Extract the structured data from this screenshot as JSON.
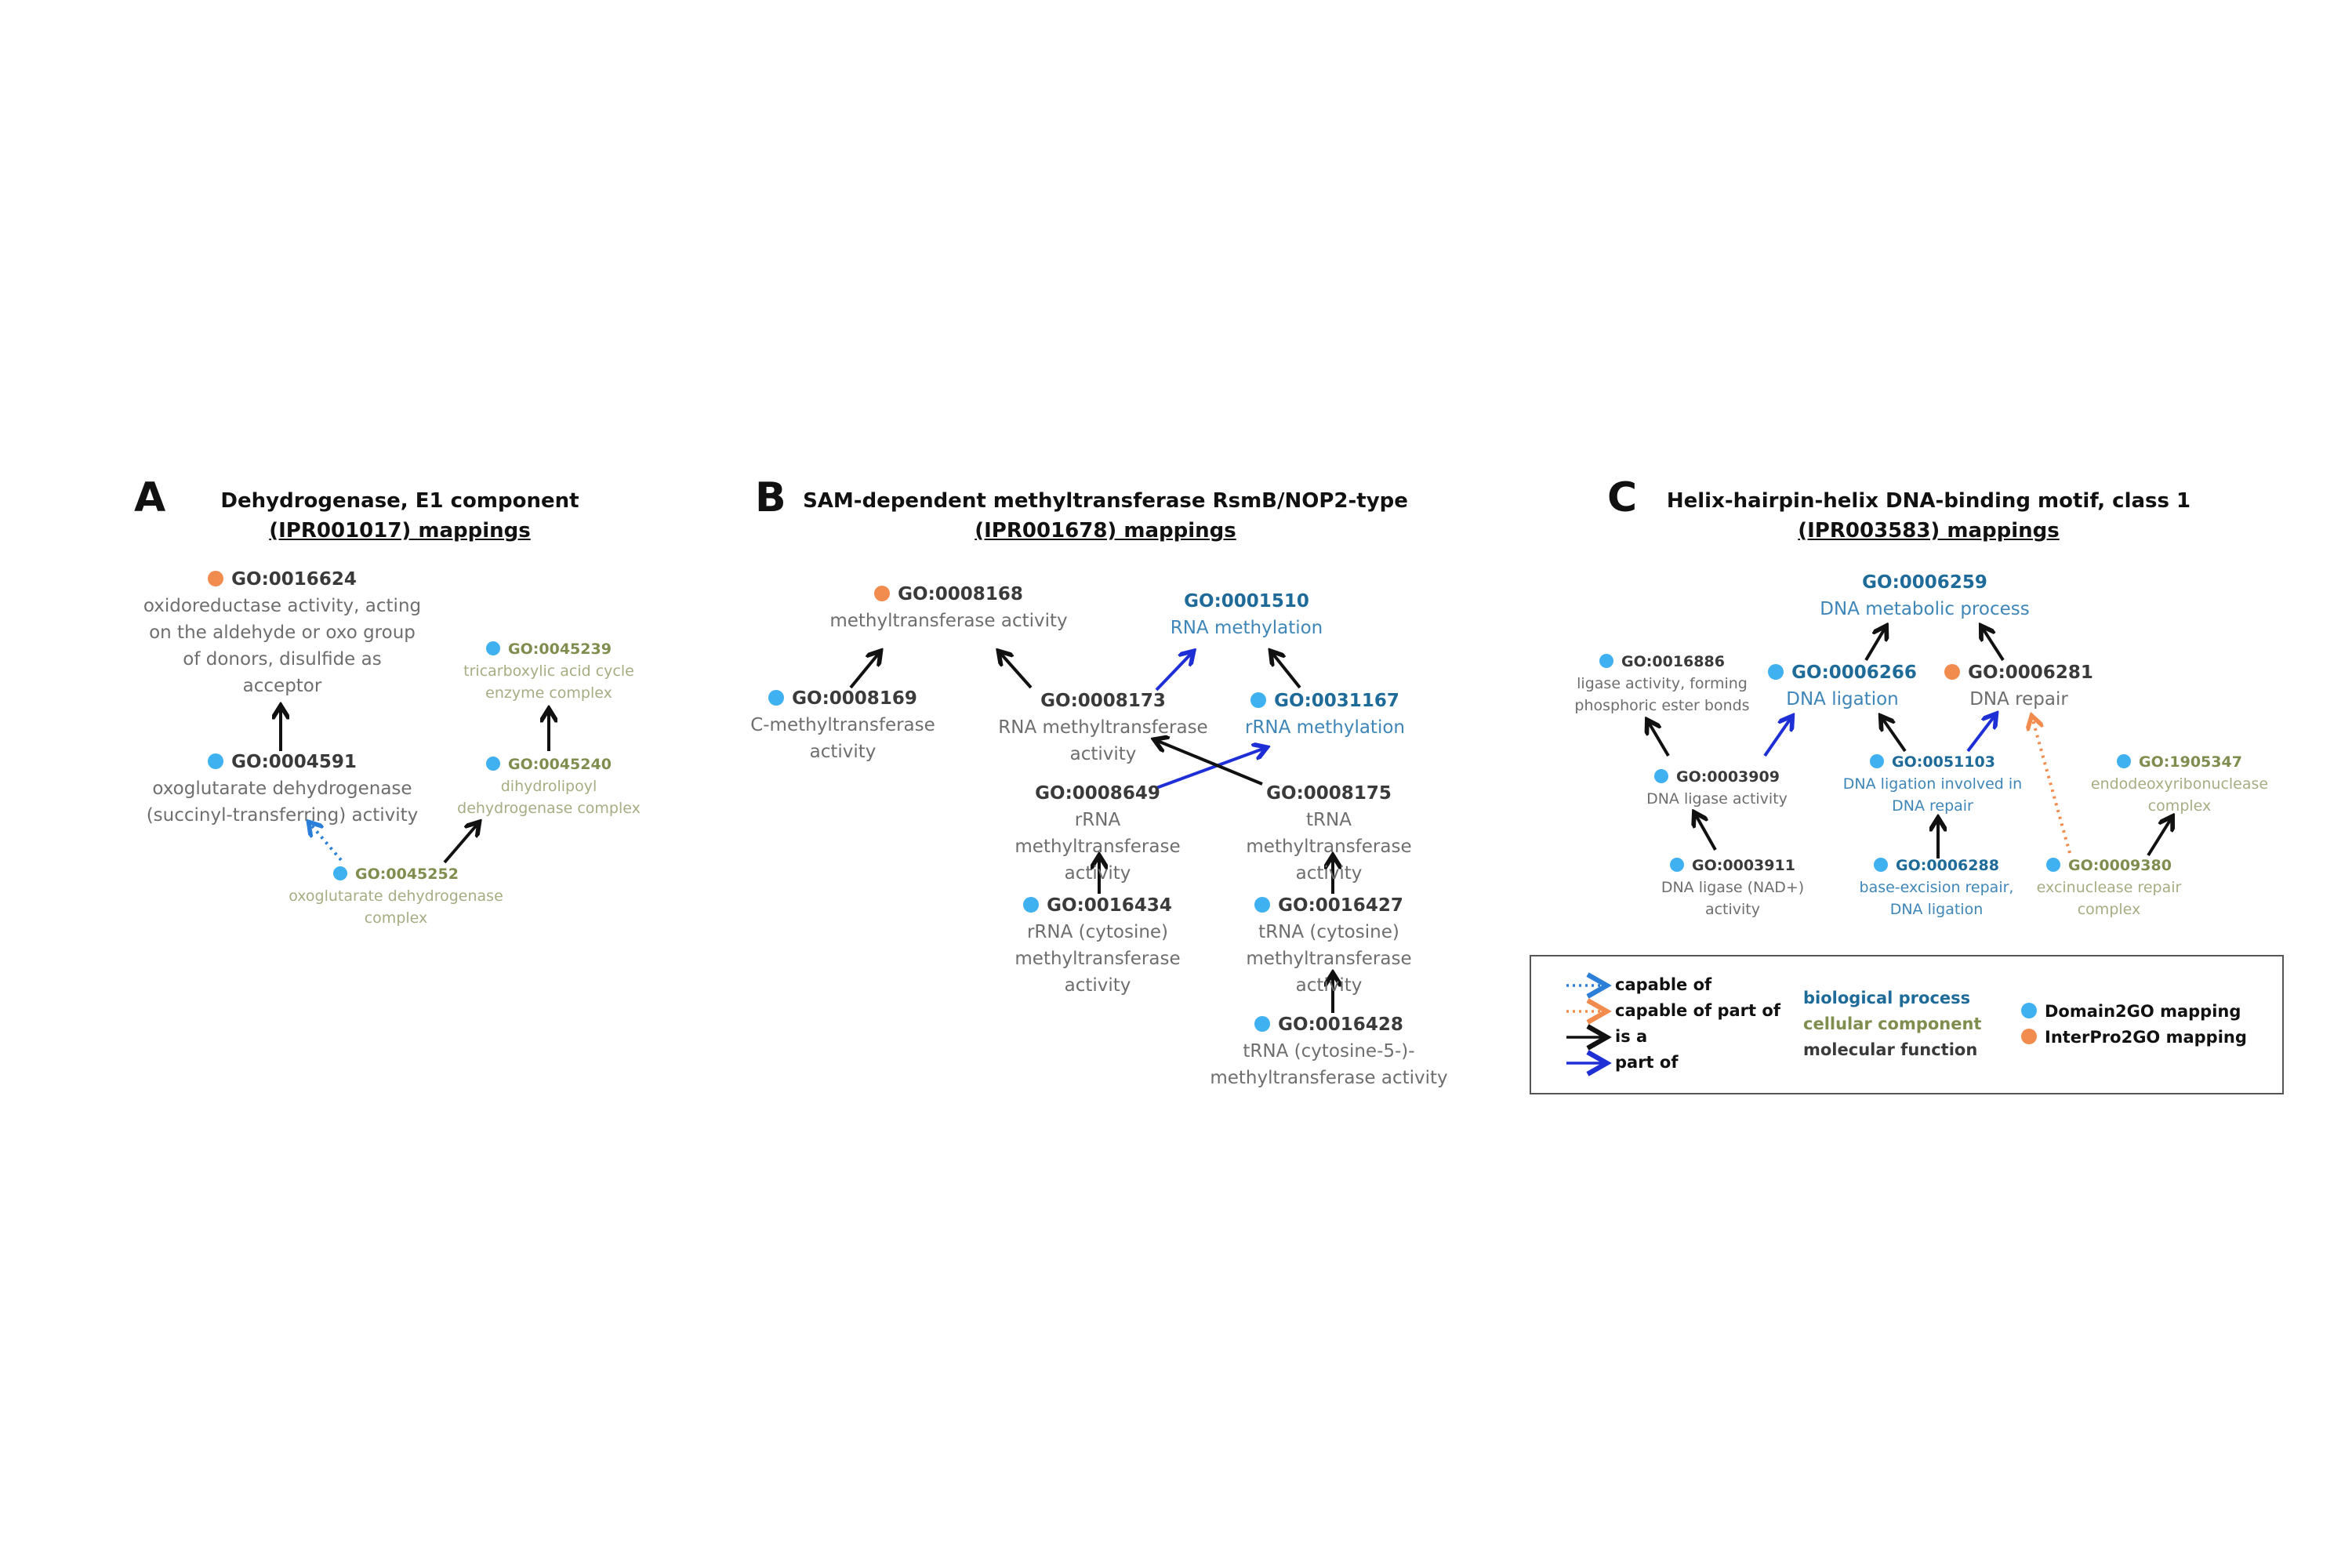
{
  "colors": {
    "domain2go": "#3fb0f0",
    "interpro2go": "#f28c4e",
    "biological_process": "#1e6b9a",
    "cellular_component": "#7f8d4e",
    "molecular_function": "#3a3a3a",
    "is_a": "#111111",
    "part_of": "#1f2fd6",
    "capable_of": "#2b7fd8",
    "capable_of_part_of": "#f28c4e"
  },
  "panels": {
    "A": {
      "letter": "A",
      "title": "Dehydrogenase, E1 component",
      "subtitle": "(IPR001017) mappings"
    },
    "B": {
      "letter": "B",
      "title": "SAM-dependent methyltransferase RsmB/NOP2-type",
      "subtitle": "(IPR001678) mappings"
    },
    "C": {
      "letter": "C",
      "title": "Helix-hairpin-helix DNA-binding motif, class 1",
      "subtitle": "(IPR003583) mappings"
    }
  },
  "nodes": {
    "a_0016624": {
      "id": "GO:0016624",
      "label": "oxidoreductase activity, acting on the aldehyde or oxo group of donors, disulfide as acceptor",
      "mapping": "interpro2go"
    },
    "a_0004591": {
      "id": "GO:0004591",
      "label": "oxoglutarate dehydrogenase (succinyl-transferring) activity",
      "mapping": "domain2go"
    },
    "a_0045239": {
      "id": "GO:0045239",
      "label": "tricarboxylic acid cycle enzyme complex",
      "mapping": "domain2go"
    },
    "a_0045240": {
      "id": "GO:0045240",
      "label": "dihydrolipoyl dehydrogenase complex",
      "mapping": "domain2go"
    },
    "a_0045252": {
      "id": "GO:0045252",
      "label": "oxoglutarate dehydrogenase complex",
      "mapping": "domain2go"
    },
    "b_0008168": {
      "id": "GO:0008168",
      "label": "methyltransferase activity",
      "mapping": "interpro2go"
    },
    "b_0001510": {
      "id": "GO:0001510",
      "label": "RNA methylation",
      "mapping": ""
    },
    "b_0008169": {
      "id": "GO:0008169",
      "label": "C-methyltransferase activity",
      "mapping": "domain2go"
    },
    "b_0008173": {
      "id": "GO:0008173",
      "label": "RNA methyltransferase activity",
      "mapping": ""
    },
    "b_0031167": {
      "id": "GO:0031167",
      "label": "rRNA methylation",
      "mapping": "domain2go"
    },
    "b_0008649": {
      "id": "GO:0008649",
      "label": "rRNA methyltransferase activity",
      "mapping": ""
    },
    "b_0008175": {
      "id": "GO:0008175",
      "label": "tRNA methyltransferase activity",
      "mapping": ""
    },
    "b_0016434": {
      "id": "GO:0016434",
      "label": "rRNA (cytosine) methyltransferase activity",
      "mapping": "domain2go"
    },
    "b_0016427": {
      "id": "GO:0016427",
      "label": "tRNA (cytosine) methyltransferase activity",
      "mapping": "domain2go"
    },
    "b_0016428": {
      "id": "GO:0016428",
      "label": "tRNA (cytosine-5-)-methyltransferase activity",
      "mapping": "domain2go"
    },
    "c_0006259": {
      "id": "GO:0006259",
      "label": "DNA metabolic process",
      "mapping": ""
    },
    "c_0016886": {
      "id": "GO:0016886",
      "label": "ligase activity, forming phosphoric ester bonds",
      "mapping": "domain2go"
    },
    "c_0006266": {
      "id": "GO:0006266",
      "label": "DNA ligation",
      "mapping": "domain2go"
    },
    "c_0006281": {
      "id": "GO:0006281",
      "label": "DNA repair",
      "mapping": "interpro2go"
    },
    "c_0003909": {
      "id": "GO:0003909",
      "label": "DNA ligase activity",
      "mapping": "domain2go"
    },
    "c_0051103": {
      "id": "GO:0051103",
      "label": "DNA ligation involved in DNA repair",
      "mapping": "domain2go"
    },
    "c_1905347": {
      "id": "GO:1905347",
      "label": "endodeoxyribonuclease complex",
      "mapping": "domain2go"
    },
    "c_0003911": {
      "id": "GO:0003911",
      "label": "DNA ligase (NAD+) activity",
      "mapping": "domain2go"
    },
    "c_0006288": {
      "id": "GO:0006288",
      "label": "base-excision repair, DNA ligation",
      "mapping": "domain2go"
    },
    "c_0009380": {
      "id": "GO:0009380",
      "label": "excinuclease repair complex",
      "mapping": "domain2go"
    }
  },
  "edges": [
    {
      "from": "a_0004591",
      "to": "a_0016624",
      "type": "is_a"
    },
    {
      "from": "a_0045240",
      "to": "a_0045239",
      "type": "is_a"
    },
    {
      "from": "a_0045252",
      "to": "a_0045240",
      "type": "is_a"
    },
    {
      "from": "a_0045252",
      "to": "a_0004591",
      "type": "capable_of"
    },
    {
      "from": "b_0008169",
      "to": "b_0008168",
      "type": "is_a"
    },
    {
      "from": "b_0008173",
      "to": "b_0008168",
      "type": "is_a"
    },
    {
      "from": "b_0008173",
      "to": "b_0001510",
      "type": "part_of"
    },
    {
      "from": "b_0031167",
      "to": "b_0001510",
      "type": "is_a"
    },
    {
      "from": "b_0008649",
      "to": "b_0031167",
      "type": "part_of"
    },
    {
      "from": "b_0008175",
      "to": "b_0008173",
      "type": "is_a"
    },
    {
      "from": "b_0016434",
      "to": "b_0008649",
      "type": "is_a"
    },
    {
      "from": "b_0016427",
      "to": "b_0008175",
      "type": "is_a"
    },
    {
      "from": "b_0016428",
      "to": "b_0016427",
      "type": "is_a"
    },
    {
      "from": "c_0006266",
      "to": "c_0006259",
      "type": "is_a"
    },
    {
      "from": "c_0006281",
      "to": "c_0006259",
      "type": "is_a"
    },
    {
      "from": "c_0003909",
      "to": "c_0016886",
      "type": "is_a"
    },
    {
      "from": "c_0003909",
      "to": "c_0006266",
      "type": "part_of"
    },
    {
      "from": "c_0051103",
      "to": "c_0006266",
      "type": "is_a"
    },
    {
      "from": "c_0051103",
      "to": "c_0006281",
      "type": "part_of"
    },
    {
      "from": "c_0003911",
      "to": "c_0003909",
      "type": "is_a"
    },
    {
      "from": "c_0006288",
      "to": "c_0051103",
      "type": "is_a"
    },
    {
      "from": "c_0009380",
      "to": "c_1905347",
      "type": "is_a"
    },
    {
      "from": "c_0009380",
      "to": "c_0006281",
      "type": "capable_of_part_of"
    }
  ],
  "legend": {
    "relations": [
      {
        "type": "capable_of",
        "label": "capable of"
      },
      {
        "type": "capable_of_part_of",
        "label": "capable of part of"
      },
      {
        "type": "is_a",
        "label": "is a"
      },
      {
        "type": "part_of",
        "label": "part of"
      }
    ],
    "ontologies": [
      {
        "key": "biological_process",
        "label": "biological process"
      },
      {
        "key": "cellular_component",
        "label": "cellular component"
      },
      {
        "key": "molecular_function",
        "label": "molecular function"
      }
    ],
    "mappings": [
      {
        "key": "domain2go",
        "label": "Domain2GO mapping"
      },
      {
        "key": "interpro2go",
        "label": "InterPro2GO mapping"
      }
    ]
  }
}
